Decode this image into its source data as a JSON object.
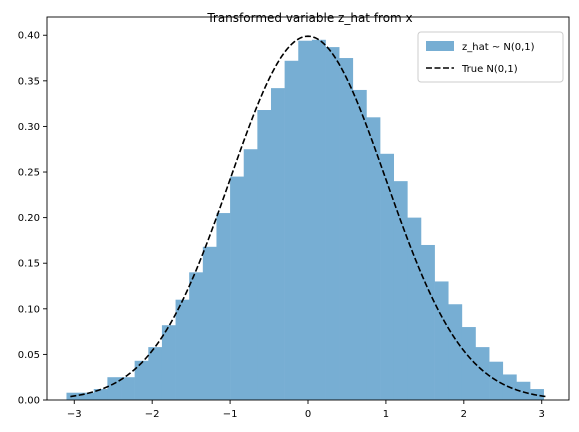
{
  "chart_data": {
    "type": "bar",
    "title": "Transformed variable z_hat from x",
    "xlabel": "",
    "ylabel": "",
    "xlim": [
      -3.35,
      3.35
    ],
    "ylim": [
      0,
      0.42
    ],
    "xticks": [
      -3,
      -2,
      -1,
      0,
      1,
      2,
      3
    ],
    "xtick_labels": [
      "−3",
      "−2",
      "−1",
      "0",
      "1",
      "2",
      "3"
    ],
    "yticks": [
      0.0,
      0.05,
      0.1,
      0.15,
      0.2,
      0.25,
      0.3,
      0.35,
      0.4
    ],
    "ytick_labels": [
      "0.00",
      "0.05",
      "0.10",
      "0.15",
      "0.20",
      "0.25",
      "0.30",
      "0.35",
      "0.40"
    ],
    "grid": false,
    "legend_position": "top-right",
    "bin_edges": [
      -3.1,
      -2.925,
      -2.75,
      -2.575,
      -2.4,
      -2.225,
      -2.05,
      -1.875,
      -1.7,
      -1.525,
      -1.35,
      -1.175,
      -1.0,
      -0.825,
      -0.65,
      -0.475,
      -0.3,
      -0.125,
      0.05,
      0.225,
      0.4,
      0.575,
      0.75,
      0.925,
      1.1,
      1.275,
      1.45,
      1.625,
      1.8,
      1.975,
      2.15,
      2.325,
      2.5,
      2.675,
      2.85,
      3.025
    ],
    "series": [
      {
        "name": "z_hat ~ N(0,1)",
        "kind": "histogram",
        "color": "#77aed3",
        "values": [
          0.008,
          0.008,
          0.012,
          0.025,
          0.025,
          0.043,
          0.058,
          0.082,
          0.11,
          0.14,
          0.168,
          0.205,
          0.245,
          0.275,
          0.318,
          0.342,
          0.372,
          0.394,
          0.395,
          0.387,
          0.375,
          0.34,
          0.31,
          0.27,
          0.24,
          0.2,
          0.17,
          0.13,
          0.105,
          0.08,
          0.058,
          0.042,
          0.028,
          0.02,
          0.012
        ]
      },
      {
        "name": "True N(0,1)",
        "kind": "line",
        "style": "dashed",
        "color": "#000000",
        "function": "normal_pdf",
        "mean": 0,
        "std": 1,
        "x_range": [
          -3.05,
          3.05
        ]
      }
    ]
  }
}
